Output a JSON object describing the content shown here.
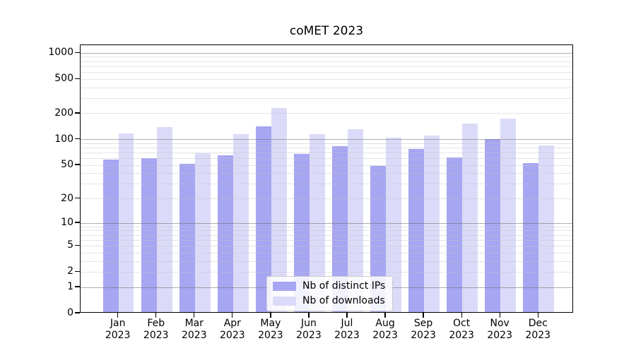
{
  "chart_data": {
    "type": "bar",
    "title": "coMET 2023",
    "categories": [
      "Jan",
      "Feb",
      "Mar",
      "Apr",
      "May",
      "Jun",
      "Jul",
      "Aug",
      "Sep",
      "Oct",
      "Nov",
      "Dec"
    ],
    "category_year": "2023",
    "series": [
      {
        "name": "Nb of distinct IPs",
        "color": "#a6a6f2",
        "values": [
          56,
          58,
          50,
          63,
          136,
          66,
          80,
          47,
          75,
          60,
          97,
          51
        ]
      },
      {
        "name": "Nb of downloads",
        "color": "#dbdbf9",
        "values": [
          113,
          135,
          67,
          111,
          225,
          112,
          128,
          101,
          107,
          148,
          168,
          83
        ]
      }
    ],
    "yscale": "log10(value+1)",
    "ylim_log_units": [
      0,
      3.092
    ],
    "yticks": [
      0,
      1,
      2,
      5,
      10,
      20,
      50,
      100,
      200,
      500,
      1000
    ],
    "grid": {
      "on": true,
      "major_values": [
        1,
        10,
        100,
        1000
      ],
      "minor_values": [
        2,
        3,
        4,
        5,
        6,
        7,
        8,
        9,
        20,
        30,
        40,
        50,
        60,
        70,
        80,
        90,
        200,
        300,
        400,
        500,
        600,
        700,
        800,
        900
      ],
      "major_color": "rgba(110,110,110,0.55)",
      "minor_color": "rgba(195,195,195,0.45)"
    },
    "legend_position": "lower center",
    "xlabel": "",
    "ylabel": ""
  }
}
